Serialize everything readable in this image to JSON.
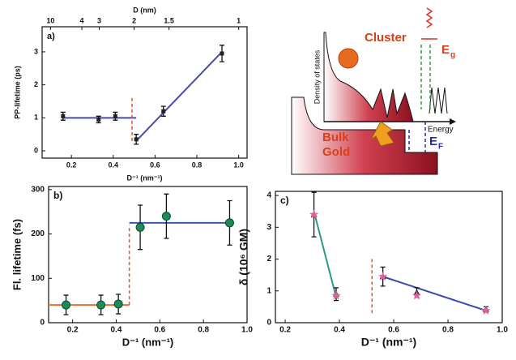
{
  "chart_data": [
    {
      "type": "scatter",
      "panel": "a)",
      "xlabel": "D⁻¹ (nm⁻¹)",
      "ylabel": "PP-lifetime (ps)",
      "x2label": "D (nm)",
      "x2ticks": [
        10,
        4,
        3,
        2,
        1.5,
        1
      ],
      "xlim": [
        0.06,
        1.04
      ],
      "ylim": [
        -0.22,
        3.76
      ],
      "xticks": [
        0.2,
        0.4,
        0.6,
        0.8,
        {
          "value": 1,
          "label": "1.0"
        }
      ],
      "yticks": [
        0,
        1,
        2,
        3
      ],
      "series": [
        {
          "mode": "line",
          "color": "#4a4aa8",
          "x": [
            0.16,
            0.51
          ],
          "values": [
            1.0,
            1.0
          ]
        },
        {
          "mode": "line",
          "color": "#4a4aa8",
          "x": [
            0.51,
            0.92
          ],
          "values": [
            0.3,
            3.0
          ]
        },
        {
          "mode": "dashed",
          "color": "#e8502a",
          "x": [
            0.49,
            0.49
          ],
          "values": [
            0.3,
            1.6
          ]
        },
        {
          "mode": "markers",
          "marker": "square",
          "color": "#222",
          "x": [
            0.16,
            0.33,
            0.41,
            0.51,
            0.64,
            0.92
          ],
          "values": [
            1.05,
            0.95,
            1.05,
            0.35,
            1.2,
            2.95
          ],
          "errors": [
            0.12,
            0.1,
            0.12,
            0.15,
            0.15,
            0.25
          ]
        }
      ]
    },
    {
      "type": "scatter",
      "panel": "b)",
      "xlabel": "D⁻¹ (nm⁻¹)",
      "ylabel": "Fl. lifetime (fs)",
      "xlim": [
        0.09,
        1.0
      ],
      "ylim": [
        0,
        307
      ],
      "xticks": [
        0.2,
        0.4,
        0.6,
        0.8,
        {
          "value": 1,
          "label": "1.0"
        }
      ],
      "yticks": [
        0,
        100,
        200,
        300
      ],
      "series": [
        {
          "mode": "line",
          "color": "#e07030",
          "x": [
            0.09,
            0.46
          ],
          "values": [
            40,
            40
          ]
        },
        {
          "mode": "line",
          "color": "#3a5aa8",
          "x": [
            0.46,
            0.92
          ],
          "values": [
            225,
            225
          ]
        },
        {
          "mode": "dashed",
          "color": "#e8502a",
          "x": [
            0.46,
            0.46
          ],
          "values": [
            40,
            220
          ]
        },
        {
          "mode": "markers",
          "marker": "circle",
          "color": "#1e8a5a",
          "x": [
            0.17,
            0.33,
            0.41,
            0.51,
            0.63,
            0.92
          ],
          "values": [
            40,
            40,
            42,
            215,
            240,
            225
          ],
          "errors": [
            22,
            22,
            22,
            50,
            50,
            50
          ]
        }
      ]
    },
    {
      "type": "scatter",
      "panel": "c)",
      "xlabel": "D⁻¹ (nm⁻¹)",
      "ylabel": "δ (10⁶ GM)",
      "xlim": [
        0.164,
        1.0
      ],
      "ylim": [
        0,
        4.13
      ],
      "xticks": [
        0.2,
        0.4,
        0.6,
        0.8,
        {
          "value": 1,
          "label": "1.0"
        }
      ],
      "yticks": [
        0,
        1,
        2,
        3,
        4
      ],
      "series": [
        {
          "mode": "line",
          "color": "#2a9a8a",
          "x": [
            0.306,
            0.388
          ],
          "values": [
            3.5,
            0.8
          ]
        },
        {
          "mode": "line",
          "color": "#3a4aa8",
          "x": [
            0.56,
            0.94
          ],
          "values": [
            1.45,
            0.38
          ]
        },
        {
          "mode": "dashed",
          "color": "#e8502a",
          "x": [
            0.52,
            0.52
          ],
          "values": [
            0.3,
            2.0
          ]
        },
        {
          "mode": "markers",
          "marker": "triangle",
          "color": "#222",
          "x": [
            0.306,
            0.388,
            0.56,
            0.685,
            0.94
          ],
          "values": [
            3.4,
            0.9,
            1.45,
            0.95,
            0.42
          ],
          "errors": [
            0.7,
            0.2,
            0.3,
            0.15,
            0.08
          ]
        },
        {
          "mode": "markers",
          "marker": "star",
          "color": "#e060a0",
          "x": [
            0.306,
            0.388,
            0.56,
            0.685,
            0.94
          ],
          "values": [
            3.4,
            0.85,
            1.45,
            0.85,
            0.38
          ]
        }
      ]
    }
  ],
  "diagram": {
    "cluster": "Cluster",
    "eg": "E",
    "eg_sub": "g",
    "dos": "Density of states",
    "energy": "Energy",
    "bulk1": "Bulk",
    "bulk2": "Gold",
    "ef": "E",
    "ef_sub": "F"
  }
}
